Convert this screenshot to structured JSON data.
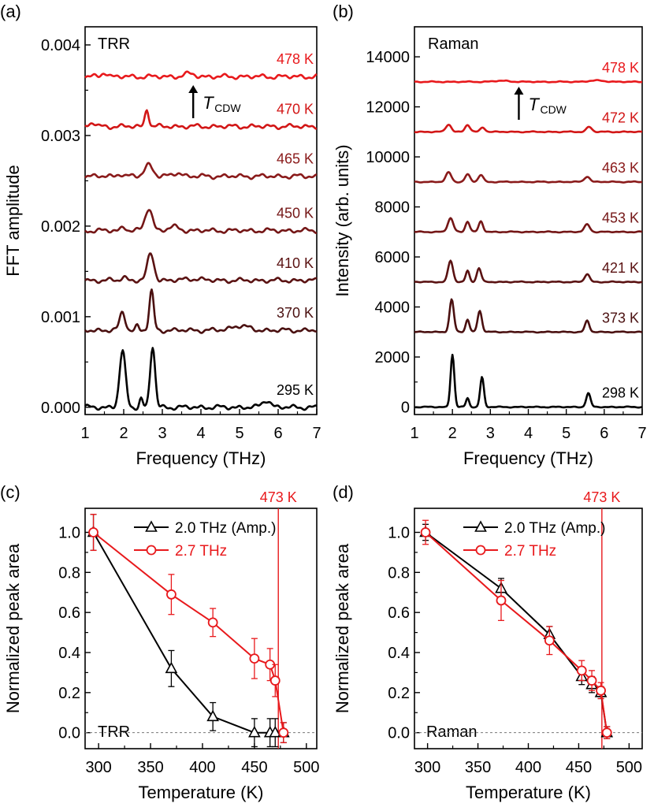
{
  "colors": {
    "axis": "#000000",
    "red": "#e8191c",
    "marker_red": "#e8191c",
    "zero_line": "#777777",
    "trace_colors": {
      "a": [
        "#000000",
        "#4a1010",
        "#5a1212",
        "#741616",
        "#8a1a1a",
        "#d21616",
        "#e8191c"
      ],
      "b": [
        "#000000",
        "#4a1010",
        "#5a1212",
        "#741616",
        "#8a1a1a",
        "#d21616",
        "#e8191c"
      ]
    }
  },
  "chart_data": [
    {
      "id": "a",
      "type": "line",
      "panel_label": "(a)",
      "inset_label": "TRR",
      "xlabel": "Frequency (THz)",
      "ylabel": "FFT amplitude",
      "xlim": [
        1,
        7
      ],
      "ylim": [
        -8e-05,
        0.0042
      ],
      "xticks": [
        "1",
        "2",
        "3",
        "4",
        "5",
        "6",
        "7"
      ],
      "yticks": [
        "0.000",
        "0.001",
        "0.002",
        "0.003",
        "0.004"
      ],
      "annotation": {
        "symbol": "T",
        "subscript": "CDW",
        "x": 3.8
      },
      "series": [
        {
          "name": "295 K",
          "offset": 0.0,
          "peaks": [
            [
              1.97,
              0.00062,
              0.11
            ],
            [
              2.75,
              0.00067,
              0.09
            ],
            [
              2.45,
              0.0001,
              0.06
            ],
            [
              5.7,
              8e-05,
              0.15
            ]
          ]
        },
        {
          "name": "370 K",
          "offset": 0.00085,
          "peaks": [
            [
              1.97,
              0.0002,
              0.1
            ],
            [
              2.72,
              0.00043,
              0.08
            ],
            [
              2.35,
              5e-05,
              0.06
            ],
            [
              5.0,
              5e-05,
              0.3
            ]
          ]
        },
        {
          "name": "410 K",
          "offset": 0.0014,
          "peaks": [
            [
              2.0,
              4e-05,
              0.1
            ],
            [
              2.7,
              0.0003,
              0.12
            ],
            [
              3.8,
              2e-05,
              0.3
            ]
          ]
        },
        {
          "name": "450 K",
          "offset": 0.00195,
          "peaks": [
            [
              2.0,
              4e-05,
              0.1
            ],
            [
              2.65,
              0.00025,
              0.13
            ],
            [
              3.3,
              4e-05,
              0.2
            ]
          ]
        },
        {
          "name": "465 K",
          "offset": 0.00255,
          "peaks": [
            [
              2.65,
              0.00013,
              0.15
            ],
            [
              3.4,
              4e-05,
              0.15
            ],
            [
              1.9,
              3e-05,
              0.1
            ]
          ]
        },
        {
          "name": "470 K",
          "offset": 0.0031,
          "peaks": [
            [
              2.6,
              0.0002,
              0.07
            ],
            [
              1.2,
              4e-05,
              0.1
            ]
          ]
        },
        {
          "name": "478 K",
          "offset": 0.00365,
          "peaks": [
            [
              1.5,
              5e-05,
              0.1
            ],
            [
              3.7,
              3e-05,
              0.2
            ]
          ]
        }
      ]
    },
    {
      "id": "b",
      "type": "line",
      "panel_label": "(b)",
      "inset_label": "Raman",
      "xlabel": "Frequency (THz)",
      "ylabel": "Intensity (arb. units)",
      "xlim": [
        1,
        7
      ],
      "ylim": [
        -300,
        15200
      ],
      "xticks": [
        "1",
        "2",
        "3",
        "4",
        "5",
        "6",
        "7"
      ],
      "yticks": [
        "0",
        "2000",
        "4000",
        "6000",
        "8000",
        "10000",
        "12000",
        "14000"
      ],
      "annotation": {
        "symbol": "T",
        "subscript": "CDW",
        "x": 3.75
      },
      "series": [
        {
          "name": "298 K",
          "offset": 0,
          "peaks": [
            [
              2.0,
              2100,
              0.07
            ],
            [
              2.78,
              1200,
              0.07
            ],
            [
              2.4,
              350,
              0.06
            ],
            [
              5.58,
              550,
              0.08
            ]
          ]
        },
        {
          "name": "373 K",
          "offset": 3000,
          "peaks": [
            [
              1.98,
              1300,
              0.08
            ],
            [
              2.72,
              850,
              0.08
            ],
            [
              2.4,
              500,
              0.07
            ],
            [
              5.55,
              450,
              0.08
            ]
          ]
        },
        {
          "name": "421 K",
          "offset": 5000,
          "peaks": [
            [
              1.95,
              850,
              0.09
            ],
            [
              2.7,
              550,
              0.08
            ],
            [
              2.4,
              450,
              0.07
            ],
            [
              5.55,
              320,
              0.09
            ]
          ]
        },
        {
          "name": "453 K",
          "offset": 7000,
          "peaks": [
            [
              1.95,
              550,
              0.1
            ],
            [
              2.4,
              420,
              0.08
            ],
            [
              2.75,
              420,
              0.08
            ],
            [
              5.55,
              300,
              0.1
            ]
          ]
        },
        {
          "name": "463 K",
          "offset": 9000,
          "peaks": [
            [
              1.9,
              380,
              0.1
            ],
            [
              2.4,
              300,
              0.09
            ],
            [
              2.75,
              280,
              0.09
            ],
            [
              5.55,
              220,
              0.1
            ]
          ]
        },
        {
          "name": "472 K",
          "offset": 11000,
          "peaks": [
            [
              1.9,
              300,
              0.1
            ],
            [
              2.4,
              280,
              0.09
            ],
            [
              2.8,
              180,
              0.09
            ],
            [
              5.6,
              200,
              0.1
            ]
          ]
        },
        {
          "name": "478 K",
          "offset": 13000,
          "peaks": [
            [
              3.3,
              40,
              0.3
            ],
            [
              5.8,
              50,
              0.3
            ]
          ]
        }
      ]
    },
    {
      "id": "c",
      "type": "scatter",
      "panel_label": "(c)",
      "inset_label": "TRR",
      "xlabel": "Temperature (K)",
      "ylabel": "Normalized peak area",
      "xlim": [
        287,
        510
      ],
      "ylim": [
        -0.08,
        1.12
      ],
      "xticks": [
        "300",
        "350",
        "400",
        "450",
        "500"
      ],
      "yticks": [
        "0.0",
        "0.2",
        "0.4",
        "0.6",
        "0.8",
        "1.0"
      ],
      "vline": {
        "x": 473,
        "label": "473 K"
      },
      "legend_position": "top-right",
      "series": [
        {
          "name": "2.0 THz (Amp.)",
          "marker": "triangle",
          "color": "#000000",
          "points": [
            [
              295,
              1.0,
              0.09
            ],
            [
              370,
              0.32,
              0.09
            ],
            [
              410,
              0.08,
              0.07
            ],
            [
              450,
              0.0,
              0.07
            ],
            [
              465,
              0.0,
              0.07
            ],
            [
              470,
              0.0,
              0.07
            ],
            [
              478,
              0.0,
              0.05
            ]
          ]
        },
        {
          "name": "2.7 THz",
          "marker": "circle",
          "color": "#e8191c",
          "points": [
            [
              295,
              1.0,
              0.09
            ],
            [
              370,
              0.69,
              0.1
            ],
            [
              410,
              0.55,
              0.07
            ],
            [
              450,
              0.37,
              0.1
            ],
            [
              465,
              0.34,
              0.08
            ],
            [
              470,
              0.26,
              0.08
            ],
            [
              478,
              0.0,
              0.05
            ]
          ]
        }
      ]
    },
    {
      "id": "d",
      "type": "scatter",
      "panel_label": "(d)",
      "inset_label": "Raman",
      "xlabel": "Temperature (K)",
      "ylabel": "Normalized peak area",
      "xlim": [
        287,
        513
      ],
      "ylim": [
        -0.08,
        1.12
      ],
      "xticks": [
        "300",
        "350",
        "400",
        "450",
        "500"
      ],
      "yticks": [
        "0.0",
        "0.2",
        "0.4",
        "0.6",
        "0.8",
        "1.0"
      ],
      "vline": {
        "x": 473,
        "label": "473 K"
      },
      "legend_position": "top-right",
      "series": [
        {
          "name": "2.0 THz (Amp.)",
          "marker": "triangle",
          "color": "#000000",
          "points": [
            [
              298,
              1.0,
              0.04
            ],
            [
              373,
              0.72,
              0.05
            ],
            [
              421,
              0.49,
              0.04
            ],
            [
              453,
              0.28,
              0.04
            ],
            [
              463,
              0.24,
              0.04
            ],
            [
              472,
              0.2,
              0.03
            ],
            [
              478,
              0.0,
              0.03
            ]
          ]
        },
        {
          "name": "2.7 THz",
          "marker": "circle",
          "color": "#e8191c",
          "points": [
            [
              298,
              1.0,
              0.06
            ],
            [
              373,
              0.66,
              0.1
            ],
            [
              421,
              0.46,
              0.07
            ],
            [
              453,
              0.31,
              0.05
            ],
            [
              463,
              0.26,
              0.05
            ],
            [
              472,
              0.21,
              0.04
            ],
            [
              478,
              0.0,
              0.03
            ]
          ]
        }
      ]
    }
  ]
}
